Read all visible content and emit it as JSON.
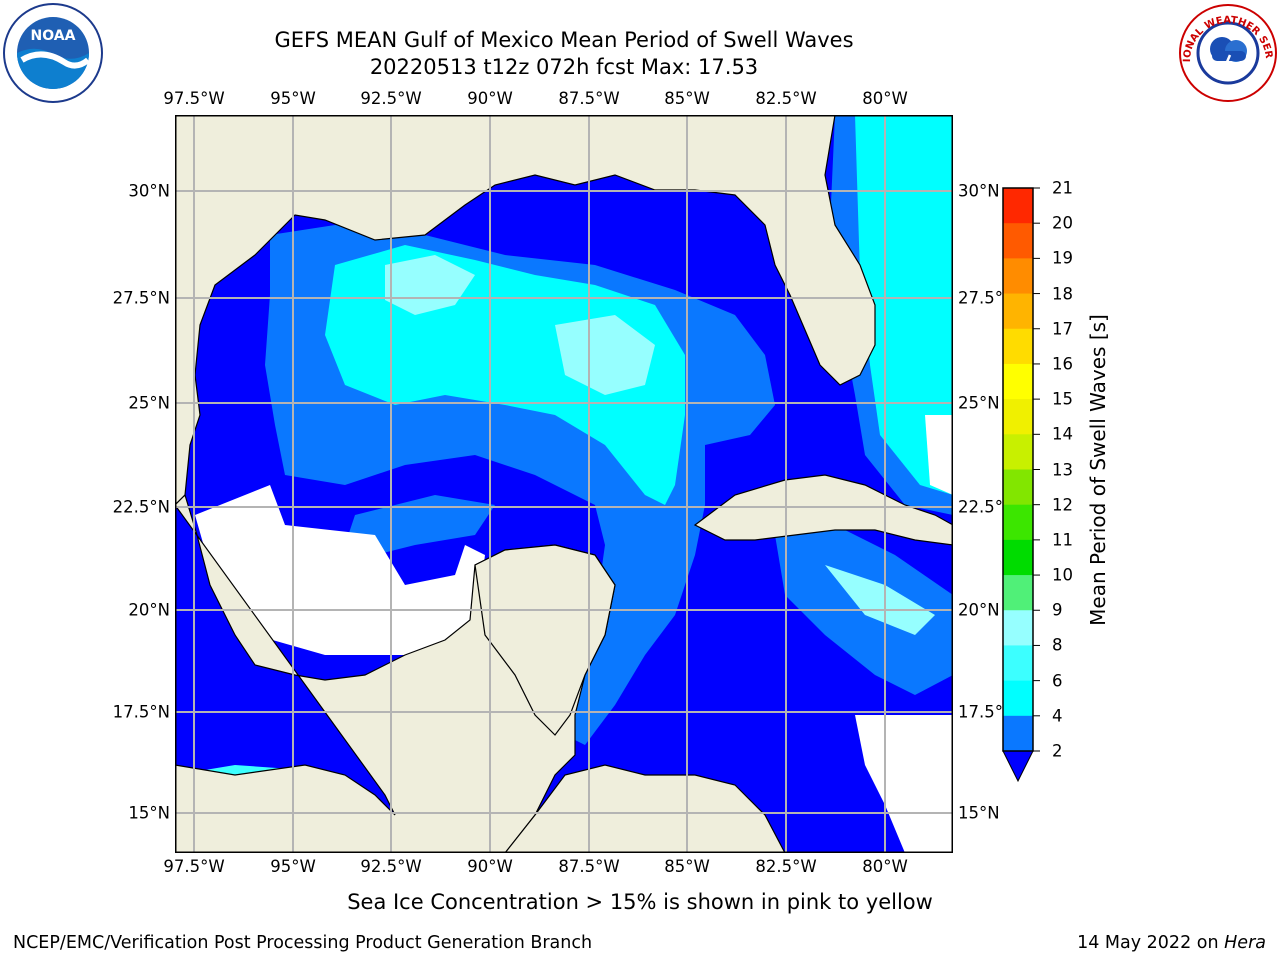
{
  "title": {
    "line1": "GEFS MEAN Gulf of Mexico Mean Period of Swell Waves",
    "line2": "20220513 t12z 072h fcst   Max: 17.53"
  },
  "axes": {
    "lon_ticks": [
      "97.5°W",
      "95°W",
      "92.5°W",
      "90°W",
      "87.5°W",
      "85°W",
      "82.5°W",
      "80°W"
    ],
    "lat_ticks_left": [
      "30°N",
      "27.5°N",
      "25°N",
      "22.5°N",
      "20°N",
      "17.5°N",
      "15°N"
    ],
    "lat_ticks_right": [
      "30°N",
      "27.5°",
      "25°N",
      "22.5°",
      "20°N",
      "17.5°",
      "15°N"
    ]
  },
  "map": {
    "lon_range": [
      -98,
      -78.3
    ],
    "lat_range": [
      14,
      31.8
    ],
    "land_color": "#efeedc",
    "no_data_color": "#ffffff",
    "grid_color": "#b4b4b4"
  },
  "colorbar": {
    "title": "Mean Period of Swell Waves [s]",
    "labels": [
      "21",
      "20",
      "19",
      "18",
      "17",
      "16",
      "15",
      "14",
      "13",
      "12",
      "11",
      "10",
      "9",
      "8",
      "6",
      "4",
      "2"
    ],
    "colors": [
      "#0000ff",
      "#0a78ff",
      "#00ffff",
      "#3cffff",
      "#96ffff",
      "#50f078",
      "#00dc00",
      "#3ce600",
      "#82e600",
      "#c8f000",
      "#f0f000",
      "#ffff00",
      "#ffdc00",
      "#ffb400",
      "#ff8c00",
      "#ff5a00",
      "#ff2800",
      "#ff0000"
    ]
  },
  "footnote": "Sea Ice Concentration > 15% is shown in pink to yellow",
  "footer": {
    "left": "NCEP/EMC/Verification Post Processing Product Generation Branch",
    "right_date": "14 May 2022 on ",
    "right_host": "Hera"
  },
  "logos": {
    "noaa_text": "NOAA",
    "nws_text": "NATIONAL WEATHER SERVICE"
  }
}
